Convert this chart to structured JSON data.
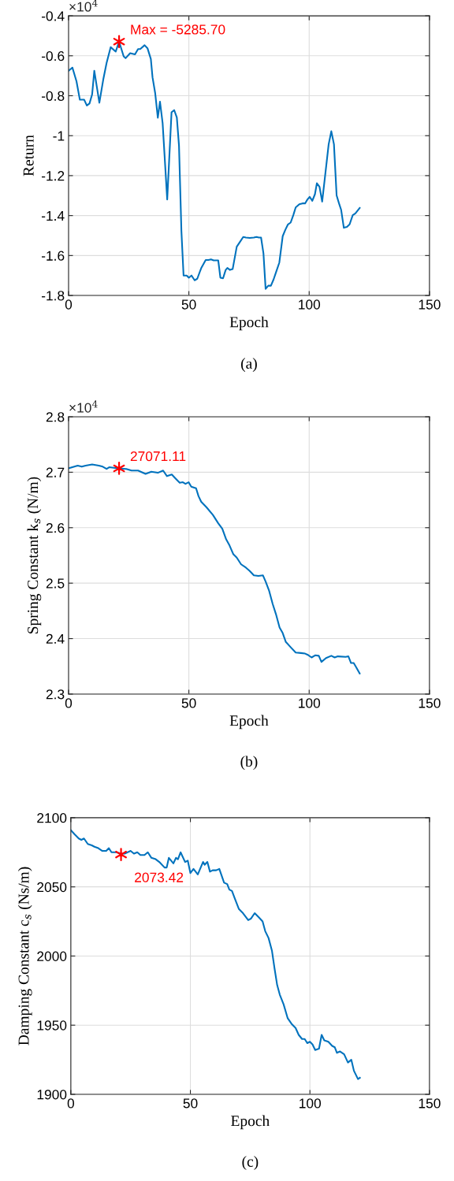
{
  "chart_data": [
    {
      "type": "line",
      "title": "(a)",
      "xlabel": "Epoch",
      "ylabel": "Return",
      "xlim": [
        0,
        150
      ],
      "xticks": [
        0,
        50,
        100,
        150
      ],
      "ylim": [
        -1.8,
        -0.4
      ],
      "yticks": [
        -0.4,
        -0.6,
        -0.8,
        -1,
        -1.2,
        -1.4,
        -1.6,
        -1.8
      ],
      "grid": true,
      "series": [
        {
          "type": "line",
          "color": "#0072bd",
          "x": [
            0,
            1.6,
            3.3,
            4.7,
            6.5,
            7.6,
            8.7,
            9.8,
            10.7,
            12.8,
            14.5,
            15.8,
            17.5,
            19.6,
            21,
            22.9,
            23.7,
            25.6,
            27.6,
            28.9,
            29.8,
            31.6,
            32.8,
            34.2,
            34.9,
            36,
            37.1,
            38,
            39.1,
            41,
            42.8,
            43.9,
            45,
            45.9,
            46.9,
            47.8,
            49.1,
            50,
            51.1,
            52.4,
            53.5,
            55.1,
            57,
            58.1,
            59.2,
            60.3,
            62.2,
            63.1,
            64.2,
            65.3,
            66,
            67.1,
            68.2,
            69.9,
            71,
            72.6,
            73.7,
            75.3,
            77,
            78.1,
            79.1,
            80,
            81,
            81.9,
            83,
            84.1,
            85.2,
            86.3,
            87.6,
            89,
            90.1,
            91.2,
            92.3,
            93.4,
            94.4,
            95.9,
            97.2,
            98.3,
            99.3,
            100.2,
            101.3,
            102.4,
            103.2,
            104.3,
            105.4,
            106.5,
            108.1,
            109.2,
            110.3,
            111.4,
            112.4,
            113.3,
            114.4,
            115.7,
            116.8,
            118.1,
            119.2,
            121
          ],
          "values": [
            -0.675,
            -0.659,
            -0.728,
            -0.82,
            -0.82,
            -0.849,
            -0.839,
            -0.793,
            -0.675,
            -0.835,
            -0.714,
            -0.636,
            -0.557,
            -0.579,
            -0.529,
            -0.603,
            -0.612,
            -0.587,
            -0.593,
            -0.566,
            -0.566,
            -0.547,
            -0.562,
            -0.616,
            -0.708,
            -0.787,
            -0.91,
            -0.83,
            -0.938,
            -1.319,
            -0.883,
            -0.872,
            -0.909,
            -1.05,
            -1.477,
            -1.7,
            -1.7,
            -1.711,
            -1.7,
            -1.724,
            -1.716,
            -1.664,
            -1.622,
            -1.622,
            -1.619,
            -1.624,
            -1.624,
            -1.711,
            -1.714,
            -1.672,
            -1.662,
            -1.672,
            -1.668,
            -1.556,
            -1.536,
            -1.507,
            -1.51,
            -1.512,
            -1.51,
            -1.507,
            -1.51,
            -1.51,
            -1.589,
            -1.767,
            -1.751,
            -1.751,
            -1.72,
            -1.681,
            -1.635,
            -1.503,
            -1.471,
            -1.444,
            -1.435,
            -1.398,
            -1.359,
            -1.343,
            -1.339,
            -1.339,
            -1.319,
            -1.306,
            -1.326,
            -1.293,
            -1.238,
            -1.256,
            -1.33,
            -1.214,
            -1.043,
            -0.978,
            -1.043,
            -1.299,
            -1.339,
            -1.372,
            -1.461,
            -1.457,
            -1.444,
            -1.398,
            -1.389,
            -1.362
          ]
        },
        {
          "type": "scatter",
          "color": "#ff0000",
          "marker": "cross",
          "x": [
            21
          ],
          "values": [
            -0.529
          ]
        }
      ],
      "annotations": [
        "×10$^{4}$",
        "Max = -5285.70"
      ]
    },
    {
      "type": "line",
      "title": "(b)",
      "xlabel": "Epoch",
      "ylabel": "Spring Constant k$_{s}$ (N/m)",
      "xlim": [
        0,
        150
      ],
      "xticks": [
        0,
        50,
        100,
        150
      ],
      "ylim": [
        2.3,
        2.8
      ],
      "yticks": [
        2.3,
        2.4,
        2.5,
        2.6,
        2.7,
        2.8
      ],
      "grid": true,
      "series": [
        {
          "type": "line",
          "color": "#0072bd",
          "x": [
            0,
            3.8,
            5.5,
            7.1,
            9.8,
            12.6,
            14.2,
            15.8,
            16.9,
            20.7,
            24,
            26.2,
            28.9,
            32,
            34.4,
            37.1,
            39.3,
            40.9,
            42.9,
            44.2,
            46.2,
            47.5,
            48.6,
            49.9,
            51,
            53,
            54,
            55.1,
            57.3,
            60,
            62.2,
            63.9,
            65.5,
            66.9,
            68.5,
            69.9,
            71.7,
            73.7,
            75.3,
            77,
            78.9,
            80.8,
            81.9,
            83.3,
            84.8,
            86.2,
            87.7,
            89,
            90.3,
            92.2,
            94.4,
            96.6,
            98.3,
            99.3,
            101,
            102.6,
            104,
            105.1,
            107,
            109.2,
            110.6,
            111.9,
            115.2,
            116.3,
            117.4,
            118.5,
            119.6,
            121
          ],
          "values": [
            2.707,
            2.712,
            2.71,
            2.712,
            2.714,
            2.712,
            2.71,
            2.706,
            2.709,
            2.707,
            2.706,
            2.703,
            2.703,
            2.697,
            2.701,
            2.699,
            2.703,
            2.693,
            2.696,
            2.69,
            2.681,
            2.682,
            2.679,
            2.682,
            2.674,
            2.671,
            2.657,
            2.647,
            2.637,
            2.623,
            2.608,
            2.598,
            2.579,
            2.568,
            2.552,
            2.546,
            2.534,
            2.528,
            2.522,
            2.514,
            2.513,
            2.514,
            2.503,
            2.487,
            2.463,
            2.444,
            2.42,
            2.41,
            2.394,
            2.385,
            2.375,
            2.374,
            2.373,
            2.371,
            2.366,
            2.37,
            2.369,
            2.358,
            2.365,
            2.369,
            2.366,
            2.368,
            2.367,
            2.368,
            2.356,
            2.356,
            2.348,
            2.337
          ]
        },
        {
          "type": "scatter",
          "color": "#ff0000",
          "marker": "cross",
          "x": [
            21
          ],
          "values": [
            2.707
          ]
        }
      ],
      "annotations": [
        "×10$^{4}$",
        "27071.11"
      ]
    },
    {
      "type": "line",
      "title": "(c)",
      "xlabel": "Epoch",
      "ylabel": "Damping Constant c$_{s}$ (Ns/m)",
      "xlim": [
        0,
        150
      ],
      "xticks": [
        0,
        50,
        100,
        150
      ],
      "ylim": [
        1900,
        2100
      ],
      "yticks": [
        1900,
        1950,
        2000,
        2050,
        2100
      ],
      "grid": true,
      "series": [
        {
          "type": "line",
          "color": "#0072bd",
          "x": [
            0,
            1.6,
            3.3,
            4.4,
            5.5,
            7.1,
            8.8,
            9.9,
            11.5,
            13.2,
            14.8,
            15.9,
            17,
            19.2,
            20.9,
            22.5,
            25,
            26.4,
            27.8,
            29.1,
            30.8,
            32.2,
            33.7,
            35.5,
            37,
            39.2,
            40.1,
            41,
            42.9,
            44,
            44.8,
            45.9,
            47.8,
            48.9,
            50,
            51.3,
            53.1,
            55.3,
            56,
            57.1,
            58.2,
            59.3,
            60.8,
            62.1,
            64.1,
            65.4,
            66.3,
            67.4,
            68.7,
            70.3,
            72,
            74.2,
            75.3,
            76.9,
            78.6,
            80.2,
            81.3,
            82.7,
            84.1,
            85.2,
            86.3,
            87.4,
            89,
            90.7,
            92.3,
            94,
            95.3,
            96.7,
            97.8,
            98.9,
            100,
            101.1,
            102.2,
            103.8,
            104.9,
            106,
            107.7,
            109.3,
            110.4,
            111.3,
            112.6,
            114.3,
            115.9,
            117.3,
            118.4,
            120.1,
            120.9
          ],
          "values": [
            2091,
            2088,
            2085,
            2084,
            2085,
            2081,
            2080,
            2079,
            2078,
            2076,
            2076,
            2078,
            2075,
            2075,
            2074,
            2074,
            2076,
            2074,
            2075,
            2073,
            2073,
            2075,
            2071,
            2070,
            2068,
            2064,
            2064,
            2071,
            2067,
            2071,
            2070,
            2075,
            2068,
            2069,
            2060,
            2063,
            2059,
            2068,
            2066,
            2068,
            2061,
            2062,
            2062,
            2063,
            2053,
            2052,
            2048,
            2047,
            2041,
            2034,
            2031,
            2026,
            2027,
            2031,
            2028,
            2025,
            2018,
            2013,
            2004,
            1991,
            1979,
            1972,
            1965,
            1955,
            1951,
            1948,
            1943,
            1940,
            1940,
            1937,
            1938,
            1936,
            1932,
            1933,
            1943,
            1939,
            1938,
            1935,
            1934,
            1930,
            1931,
            1929,
            1923,
            1925,
            1917,
            1911,
            1912
          ]
        },
        {
          "type": "scatter",
          "color": "#ff0000",
          "marker": "cross",
          "x": [
            21
          ],
          "values": [
            2073.4
          ]
        }
      ],
      "annotations": [
        "2073.42"
      ]
    }
  ]
}
